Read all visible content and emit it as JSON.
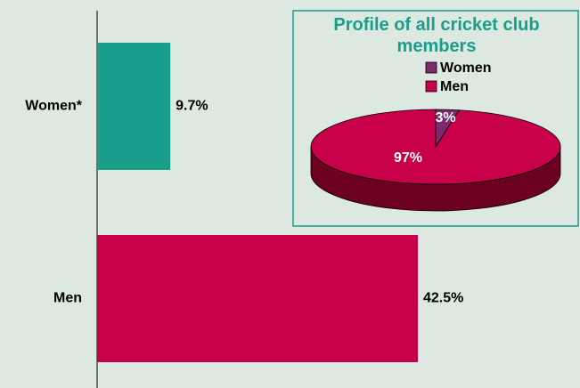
{
  "chart_data": [
    {
      "type": "bar",
      "orientation": "horizontal",
      "categories": [
        "Women*",
        "Men"
      ],
      "values": [
        9.7,
        42.5
      ],
      "value_labels": [
        "9.7%",
        "42.5%"
      ],
      "colors": [
        "#1a9e8c",
        "#c8004a"
      ]
    },
    {
      "type": "pie",
      "title": "Profile of all cricket club members",
      "categories": [
        "Women",
        "Men"
      ],
      "values": [
        3,
        97
      ],
      "value_labels": [
        "3%",
        "97%"
      ],
      "colors": [
        "#7b2a6e",
        "#c8004a"
      ]
    }
  ]
}
